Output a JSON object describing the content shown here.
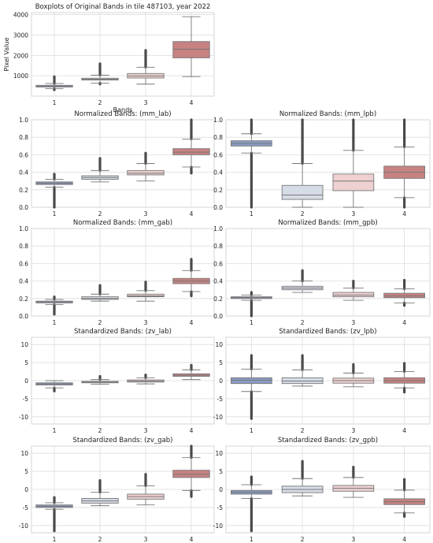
{
  "chart_data": [
    {
      "type": "boxplot",
      "title": "Boxplots of Original Bands in tile 487103, year 2022",
      "xlabel": "Bands",
      "ylabel": "Pixel Value",
      "categories": [
        "1",
        "2",
        "3",
        "4"
      ],
      "ylim": [
        0,
        4100
      ],
      "yticks": [
        1000,
        2000,
        3000,
        4000
      ],
      "boxes": [
        {
          "q1": 450,
          "median": 490,
          "q3": 530,
          "whisker_low": 370,
          "whisker_high": 620,
          "outlier_low": 310,
          "outlier_high": 960
        },
        {
          "q1": 790,
          "median": 830,
          "q3": 880,
          "whisker_low": 640,
          "whisker_high": 1030,
          "outlier_low": 590,
          "outlier_high": 1590
        },
        {
          "q1": 890,
          "median": 990,
          "q3": 1110,
          "whisker_low": 590,
          "whisker_high": 1420,
          "outlier_low": null,
          "outlier_high": 2250
        },
        {
          "q1": 1880,
          "median": 2300,
          "q3": 2680,
          "whisker_low": 960,
          "whisker_high": 3900,
          "outlier_low": null,
          "outlier_high": null
        }
      ]
    },
    {
      "type": "boxplot",
      "title": "Normalized Bands: (mm_lab)",
      "categories": [
        "1",
        "2",
        "3",
        "4"
      ],
      "ylim": [
        0,
        1
      ],
      "yticks": [
        0.0,
        0.2,
        0.4,
        0.6,
        0.8,
        1.0
      ],
      "boxes": [
        {
          "q1": 0.26,
          "median": 0.275,
          "q3": 0.29,
          "whisker_low": 0.23,
          "whisker_high": 0.32,
          "outlier_low": 0.0,
          "outlier_high": 0.38
        },
        {
          "q1": 0.32,
          "median": 0.34,
          "q3": 0.36,
          "whisker_low": 0.29,
          "whisker_high": 0.42,
          "outlier_low": null,
          "outlier_high": 0.56
        },
        {
          "q1": 0.37,
          "median": 0.39,
          "q3": 0.42,
          "whisker_low": 0.3,
          "whisker_high": 0.5,
          "outlier_low": null,
          "outlier_high": 0.62
        },
        {
          "q1": 0.6,
          "median": 0.63,
          "q3": 0.67,
          "whisker_low": 0.46,
          "whisker_high": 0.78,
          "outlier_low": 0.39,
          "outlier_high": 1.0
        }
      ]
    },
    {
      "type": "boxplot",
      "title": "Normalized Bands: (mm_lpb)",
      "categories": [
        "1",
        "2",
        "3",
        "4"
      ],
      "ylim": [
        0,
        1
      ],
      "yticks": [
        0.0,
        0.2,
        0.4,
        0.6,
        0.8,
        1.0
      ],
      "boxes": [
        {
          "q1": 0.7,
          "median": 0.73,
          "q3": 0.76,
          "whisker_low": 0.62,
          "whisker_high": 0.84,
          "outlier_low": 0.0,
          "outlier_high": 1.0
        },
        {
          "q1": 0.09,
          "median": 0.14,
          "q3": 0.25,
          "whisker_low": 0.0,
          "whisker_high": 0.5,
          "outlier_low": null,
          "outlier_high": 1.0
        },
        {
          "q1": 0.19,
          "median": 0.3,
          "q3": 0.38,
          "whisker_low": 0.0,
          "whisker_high": 0.65,
          "outlier_low": null,
          "outlier_high": 1.0
        },
        {
          "q1": 0.33,
          "median": 0.4,
          "q3": 0.47,
          "whisker_low": 0.11,
          "whisker_high": 0.69,
          "outlier_low": 0.0,
          "outlier_high": 1.0
        }
      ]
    },
    {
      "type": "boxplot",
      "title": "Normalized Bands: (mm_gab)",
      "categories": [
        "1",
        "2",
        "3",
        "4"
      ],
      "ylim": [
        0,
        1
      ],
      "yticks": [
        0.0,
        0.2,
        0.4,
        0.6,
        0.8,
        1.0
      ],
      "boxes": [
        {
          "q1": 0.15,
          "median": 0.16,
          "q3": 0.17,
          "whisker_low": 0.13,
          "whisker_high": 0.19,
          "outlier_low": 0.02,
          "outlier_high": 0.22
        },
        {
          "q1": 0.19,
          "median": 0.2,
          "q3": 0.22,
          "whisker_low": 0.17,
          "whisker_high": 0.25,
          "outlier_low": null,
          "outlier_high": 0.35
        },
        {
          "q1": 0.22,
          "median": 0.23,
          "q3": 0.25,
          "whisker_low": 0.17,
          "whisker_high": 0.29,
          "outlier_low": null,
          "outlier_high": 0.39
        },
        {
          "q1": 0.37,
          "median": 0.4,
          "q3": 0.43,
          "whisker_low": 0.28,
          "whisker_high": 0.52,
          "outlier_low": 0.23,
          "outlier_high": 0.65
        }
      ]
    },
    {
      "type": "boxplot",
      "title": "Normalized Bands: (mm_gpb)",
      "categories": [
        "1",
        "2",
        "3",
        "4"
      ],
      "ylim": [
        0,
        1
      ],
      "yticks": [
        0.0,
        0.2,
        0.4,
        0.6,
        0.8,
        1.0
      ],
      "boxes": [
        {
          "q1": 0.2,
          "median": 0.21,
          "q3": 0.22,
          "whisker_low": 0.18,
          "whisker_high": 0.24,
          "outlier_low": 0.0,
          "outlier_high": 0.27
        },
        {
          "q1": 0.3,
          "median": 0.32,
          "q3": 0.34,
          "whisker_low": 0.27,
          "whisker_high": 0.4,
          "outlier_low": null,
          "outlier_high": 0.52
        },
        {
          "q1": 0.22,
          "median": 0.24,
          "q3": 0.27,
          "whisker_low": 0.18,
          "whisker_high": 0.32,
          "outlier_low": null,
          "outlier_high": 0.4
        },
        {
          "q1": 0.21,
          "median": 0.23,
          "q3": 0.26,
          "whisker_low": 0.15,
          "whisker_high": 0.31,
          "outlier_low": 0.12,
          "outlier_high": 0.41
        }
      ]
    },
    {
      "type": "boxplot",
      "title": "Standardized Bands: (zv_lab)",
      "categories": [
        "1",
        "2",
        "3",
        "4"
      ],
      "ylim": [
        -12,
        12
      ],
      "yticks": [
        -10,
        -5,
        0,
        5,
        10
      ],
      "boxes": [
        {
          "q1": -1.2,
          "median": -0.9,
          "q3": -0.6,
          "whisker_low": -2.0,
          "whisker_high": 0.0,
          "outlier_low": -2.9,
          "outlier_high": null
        },
        {
          "q1": -0.6,
          "median": -0.4,
          "q3": -0.2,
          "whisker_low": -1.0,
          "whisker_high": 0.3,
          "outlier_low": null,
          "outlier_high": 1.2
        },
        {
          "q1": -0.4,
          "median": -0.1,
          "q3": 0.2,
          "whisker_low": -0.9,
          "whisker_high": 0.8,
          "outlier_low": null,
          "outlier_high": 1.6
        },
        {
          "q1": 1.2,
          "median": 1.5,
          "q3": 1.9,
          "whisker_low": 0.3,
          "whisker_high": 3.0,
          "outlier_low": null,
          "outlier_high": 4.3
        }
      ]
    },
    {
      "type": "boxplot",
      "title": "Standardized Bands: (zv_lpb)",
      "categories": [
        "1",
        "2",
        "3",
        "4"
      ],
      "ylim": [
        -12,
        12
      ],
      "yticks": [
        -10,
        -5,
        0,
        5,
        10
      ],
      "boxes": [
        {
          "q1": -0.8,
          "median": 0.1,
          "q3": 0.8,
          "whisker_low": -3.0,
          "whisker_high": 3.2,
          "outlier_low": -10.5,
          "outlier_high": 7.0
        },
        {
          "q1": -0.8,
          "median": -0.1,
          "q3": 0.8,
          "whisker_low": -1.5,
          "whisker_high": 3.0,
          "outlier_low": null,
          "outlier_high": 7.0
        },
        {
          "q1": -0.7,
          "median": 0.0,
          "q3": 0.7,
          "whisker_low": -1.7,
          "whisker_high": 2.1,
          "outlier_low": null,
          "outlier_high": 4.5
        },
        {
          "q1": -0.7,
          "median": 0.0,
          "q3": 0.8,
          "whisker_low": -2.0,
          "whisker_high": 2.5,
          "outlier_low": -3.2,
          "outlier_high": 4.8
        }
      ]
    },
    {
      "type": "boxplot",
      "title": "Standardized Bands: (zv_gab)",
      "categories": [
        "1",
        "2",
        "3",
        "4"
      ],
      "ylim": [
        -12,
        12
      ],
      "yticks": [
        -10,
        -5,
        0,
        5,
        10
      ],
      "boxes": [
        {
          "q1": -5.0,
          "median": -4.7,
          "q3": -4.3,
          "whisker_low": -5.5,
          "whisker_high": -3.7,
          "outlier_low": -11.5,
          "outlier_high": -2.2
        },
        {
          "q1": -3.8,
          "median": -3.2,
          "q3": -2.5,
          "whisker_low": -4.5,
          "whisker_high": -0.8,
          "outlier_low": null,
          "outlier_high": 2.5
        },
        {
          "q1": -2.7,
          "median": -2.0,
          "q3": -1.3,
          "whisker_low": -4.3,
          "whisker_high": 1.0,
          "outlier_low": null,
          "outlier_high": 4.2
        },
        {
          "q1": 3.3,
          "median": 4.2,
          "q3": 5.3,
          "whisker_low": -0.3,
          "whisker_high": 8.8,
          "outlier_low": -2.0,
          "outlier_high": 12.0
        }
      ]
    },
    {
      "type": "boxplot",
      "title": "Standardized Bands: (zv_gpb)",
      "categories": [
        "1",
        "2",
        "3",
        "4"
      ],
      "ylim": [
        -12,
        12
      ],
      "yticks": [
        -10,
        -5,
        0,
        5,
        10
      ],
      "boxes": [
        {
          "q1": -1.3,
          "median": -0.8,
          "q3": -0.3,
          "whisker_low": -2.5,
          "whisker_high": 1.3,
          "outlier_low": -11.5,
          "outlier_high": 3.5
        },
        {
          "q1": -0.9,
          "median": 0.0,
          "q3": 0.9,
          "whisker_low": -1.8,
          "whisker_high": 3.0,
          "outlier_low": null,
          "outlier_high": 7.8
        },
        {
          "q1": -0.5,
          "median": 0.3,
          "q3": 1.1,
          "whisker_low": -2.2,
          "whisker_high": 3.3,
          "outlier_low": null,
          "outlier_high": 6.2
        },
        {
          "q1": -4.2,
          "median": -3.4,
          "q3": -2.6,
          "whisker_low": -6.5,
          "whisker_high": -0.2,
          "outlier_low": -7.5,
          "outlier_high": 2.8
        }
      ]
    }
  ],
  "colors": {
    "box_fills": [
      "#8a9cc4",
      "#d6dce7",
      "#efd1d1",
      "#c78281"
    ],
    "box_edge": "#777777",
    "outlier": "#4a4a4a",
    "grid": "#dddddd",
    "axes_edge": "#d4d4d4"
  }
}
